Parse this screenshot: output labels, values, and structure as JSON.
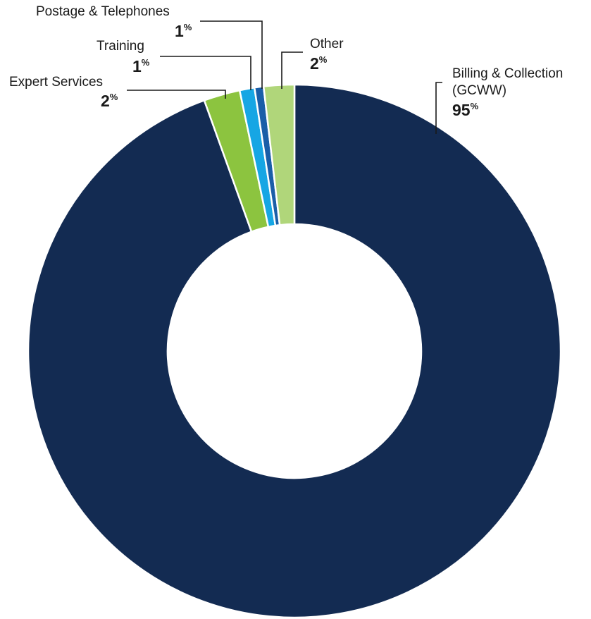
{
  "chart_data": {
    "type": "pie",
    "variant": "donut",
    "legend": "none",
    "percent_symbol": "%",
    "slices": [
      {
        "name": "Billing & Collection (GCWW)",
        "label_lines": [
          "Billing & Collection",
          "(GCWW)"
        ],
        "value_label": "95",
        "value": 94.5,
        "color": "#132b52"
      },
      {
        "name": "Expert Services",
        "label_lines": [
          "Expert Services"
        ],
        "value_label": "2",
        "value": 2.2,
        "color": "#8cc43f"
      },
      {
        "name": "Training",
        "label_lines": [
          "Training"
        ],
        "value_label": "1",
        "value": 0.9,
        "color": "#16a6e4"
      },
      {
        "name": "Postage & Telephones",
        "label_lines": [
          "Postage & Telephones"
        ],
        "value_label": "1",
        "value": 0.55,
        "color": "#1a5ea8"
      },
      {
        "name": "Other",
        "label_lines": [
          "Other"
        ],
        "value_label": "2",
        "value": 1.85,
        "color": "#b0d67a"
      }
    ]
  }
}
